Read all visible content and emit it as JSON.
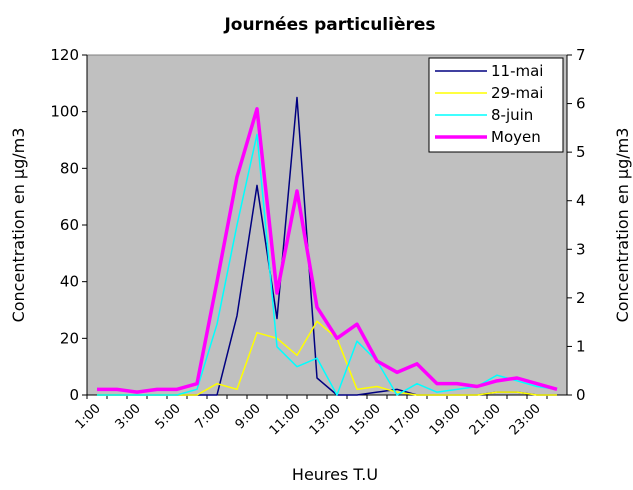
{
  "chart_data": {
    "type": "line",
    "title": "Journées particulières",
    "x_label": "Heures T.U",
    "y_label": "Concentration en µg/m3",
    "y2_label": "Concentration en µg/m3",
    "categories": [
      "1:00",
      null,
      "3:00",
      null,
      "5:00",
      null,
      "7:00",
      null,
      "9:00",
      null,
      "11:00",
      null,
      "13:00",
      null,
      "15:00",
      null,
      "17:00",
      null,
      "19:00",
      null,
      "21:00",
      null,
      "23:00",
      null
    ],
    "series": [
      {
        "name": "11-mai",
        "color": "#000080",
        "width": 1.5,
        "values": [
          0,
          0,
          0,
          0,
          0,
          0,
          0,
          28,
          74,
          27,
          105,
          6,
          0,
          0,
          1,
          2,
          0,
          0,
          0,
          0,
          1,
          1,
          0,
          0
        ]
      },
      {
        "name": "29-mai",
        "color": "#ffff00",
        "width": 1.5,
        "values": [
          0,
          0,
          0,
          0,
          0,
          0,
          4,
          2,
          22,
          20,
          14,
          26,
          20,
          2,
          3,
          1,
          0,
          0,
          0,
          0,
          1,
          1,
          0,
          0
        ]
      },
      {
        "name": "8-juin",
        "color": "#00ffff",
        "width": 1.5,
        "values": [
          0,
          0,
          0,
          0,
          0,
          2,
          25,
          60,
          92,
          17,
          10,
          13,
          0,
          19,
          12,
          0,
          4,
          1,
          2,
          3,
          7,
          5,
          3,
          2
        ]
      },
      {
        "name": "Moyen",
        "color": "#ff00ff",
        "width": 3.5,
        "values": [
          2,
          2,
          1,
          2,
          2,
          4,
          40,
          77,
          101,
          36,
          72,
          31,
          20,
          25,
          12,
          8,
          11,
          4,
          4,
          3,
          5,
          6,
          4,
          2
        ]
      }
    ],
    "ylim": [
      0,
      120
    ],
    "yticks": [
      0,
      20,
      40,
      60,
      80,
      100,
      120
    ],
    "y2lim": [
      0,
      7
    ],
    "y2ticks": [
      0,
      1,
      2,
      3,
      4,
      5,
      6,
      7
    ],
    "legend": "upper right",
    "background": "#c0c0c0"
  }
}
